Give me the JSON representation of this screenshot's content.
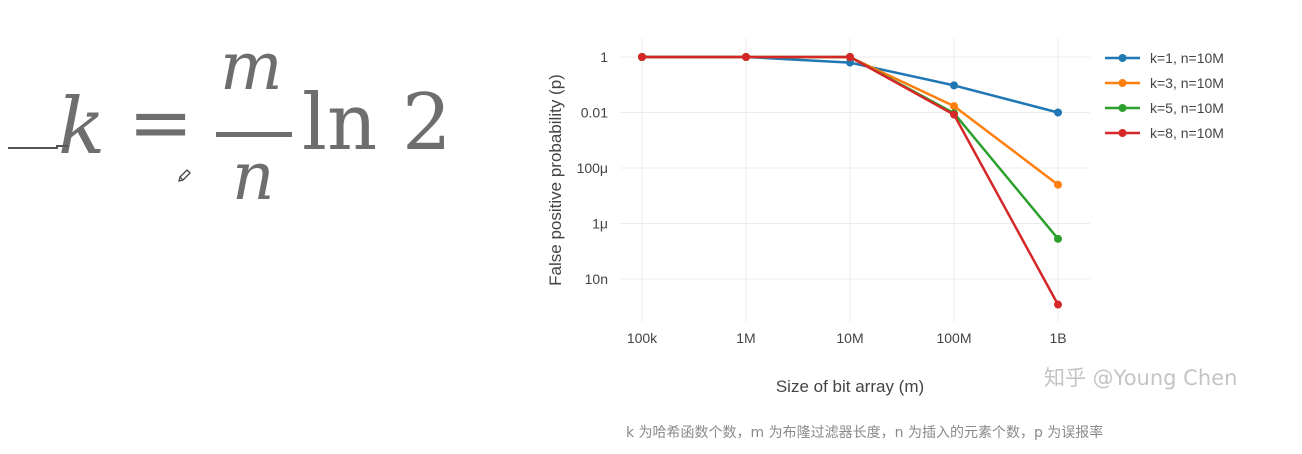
{
  "formula": {
    "lhs": "k",
    "equals": "=",
    "numerator": "m",
    "denominator": "n",
    "rhs": "ln 2"
  },
  "watermark": "知乎 @Young Chen",
  "caption": "k 为哈希函数个数，m 为布隆过滤器长度，n 为插入的元素个数，p 为误报率",
  "icons": {
    "pencil": "pencil-icon"
  },
  "chart_data": {
    "type": "line",
    "xlabel": "Size of bit array (m)",
    "ylabel": "False positive probability (p)",
    "x_scale": "log",
    "y_scale": "log",
    "x": [
      100000,
      1000000,
      10000000,
      100000000,
      1000000000
    ],
    "x_tick_labels": [
      "100k",
      "1M",
      "10M",
      "100M",
      "1B"
    ],
    "y_ticks": [
      1,
      0.01,
      0.0001,
      1e-06,
      1e-08
    ],
    "y_tick_labels": [
      "1",
      "0.01",
      "100μ",
      "1μ",
      "10n"
    ],
    "legend_position": "top-right",
    "grid": true,
    "series": [
      {
        "name": "k=1, n=10M",
        "color": "#1f77b4",
        "values": [
          1,
          1,
          0.63,
          0.095,
          0.01
        ]
      },
      {
        "name": "k=3, n=10M",
        "color": "#ff7f0e",
        "values": [
          1,
          1,
          0.99,
          0.017,
          2.5e-05
        ]
      },
      {
        "name": "k=5, n=10M",
        "color": "#2ca02c",
        "values": [
          1,
          1,
          1,
          0.0094,
          2.8e-07
        ]
      },
      {
        "name": "k=8, n=10M",
        "color": "#d62728",
        "values": [
          1,
          1,
          1,
          0.0084,
          1.2e-09
        ]
      }
    ]
  }
}
